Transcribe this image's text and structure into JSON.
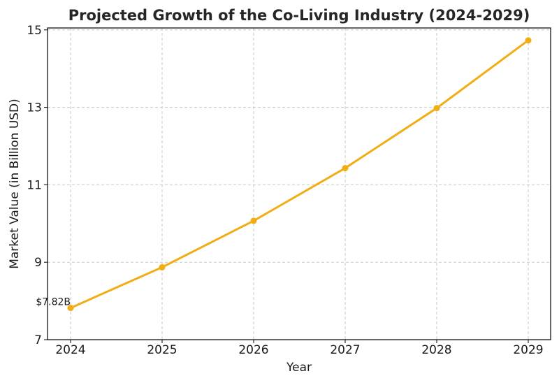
{
  "chart_data": {
    "type": "line",
    "title": "Projected Growth of the Co-Living Industry (2024-2029)",
    "xlabel": "Year",
    "ylabel": "Market Value (in Billion USD)",
    "x": [
      "2024",
      "2025",
      "2026",
      "2027",
      "2028",
      "2029"
    ],
    "series": [
      {
        "values": [
          7.82,
          8.87,
          10.07,
          11.43,
          12.98,
          14.73
        ]
      }
    ],
    "ylim": [
      7,
      15.05
    ],
    "yticks": [
      7,
      9,
      11,
      13,
      15
    ],
    "grid": true,
    "line_color": "#F0AD14",
    "annotations": [
      {
        "x": "2024",
        "text": "$7.82B"
      }
    ]
  }
}
